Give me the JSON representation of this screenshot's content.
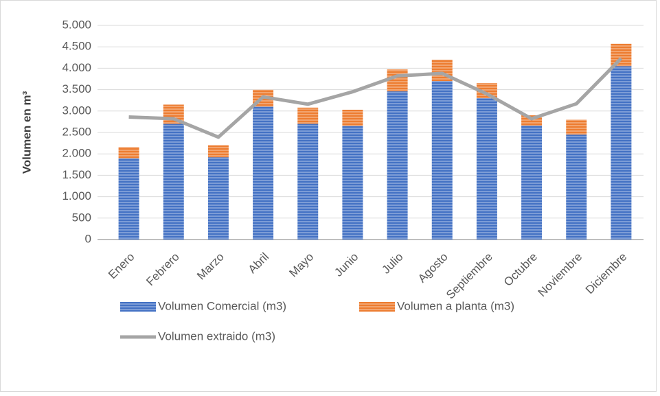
{
  "chart_data": {
    "type": "bar",
    "ylabel": "Volumen en m³",
    "categories": [
      "Enero",
      "Febrero",
      "Marzo",
      "Abril",
      "Mayo",
      "Junio",
      "Julio",
      "Agosto",
      "Septiembre",
      "Octubre",
      "Noviembre",
      "Diciembre"
    ],
    "series": [
      {
        "name": "Volumen Comercial (m3)",
        "color": "#4472c4",
        "kind": "bar",
        "values": [
          1900,
          2700,
          1920,
          3100,
          2700,
          2650,
          3460,
          3700,
          3300,
          2660,
          2450,
          4050
        ]
      },
      {
        "name": "Volumen a planta (m3)",
        "color": "#ed7d31",
        "kind": "bar",
        "values": [
          260,
          450,
          280,
          400,
          380,
          380,
          510,
          500,
          350,
          240,
          350,
          520
        ]
      },
      {
        "name": "Volumen extraido (m3)",
        "color": "#a5a5a5",
        "kind": "line",
        "values": [
          2860,
          2820,
          2390,
          3330,
          3160,
          3450,
          3820,
          3880,
          3400,
          2820,
          3170,
          4230
        ]
      }
    ],
    "stacked": true,
    "ylim": [
      0,
      5000
    ],
    "yticks": [
      0,
      {
        "value": 500,
        "label": "500"
      },
      {
        "value": 1000,
        "label": "1.000"
      },
      {
        "value": 1500,
        "label": "1.500"
      },
      {
        "value": 2000,
        "label": "2.000"
      },
      {
        "value": 2500,
        "label": "2.500"
      },
      {
        "value": 3000,
        "label": "3.000"
      },
      {
        "value": 3500,
        "label": "3.500"
      },
      {
        "value": 4000,
        "label": "4.000"
      },
      {
        "value": 4500,
        "label": "4.500"
      },
      {
        "value": 5000,
        "label": "5.000"
      }
    ],
    "grid": true,
    "legend": "bottom"
  }
}
